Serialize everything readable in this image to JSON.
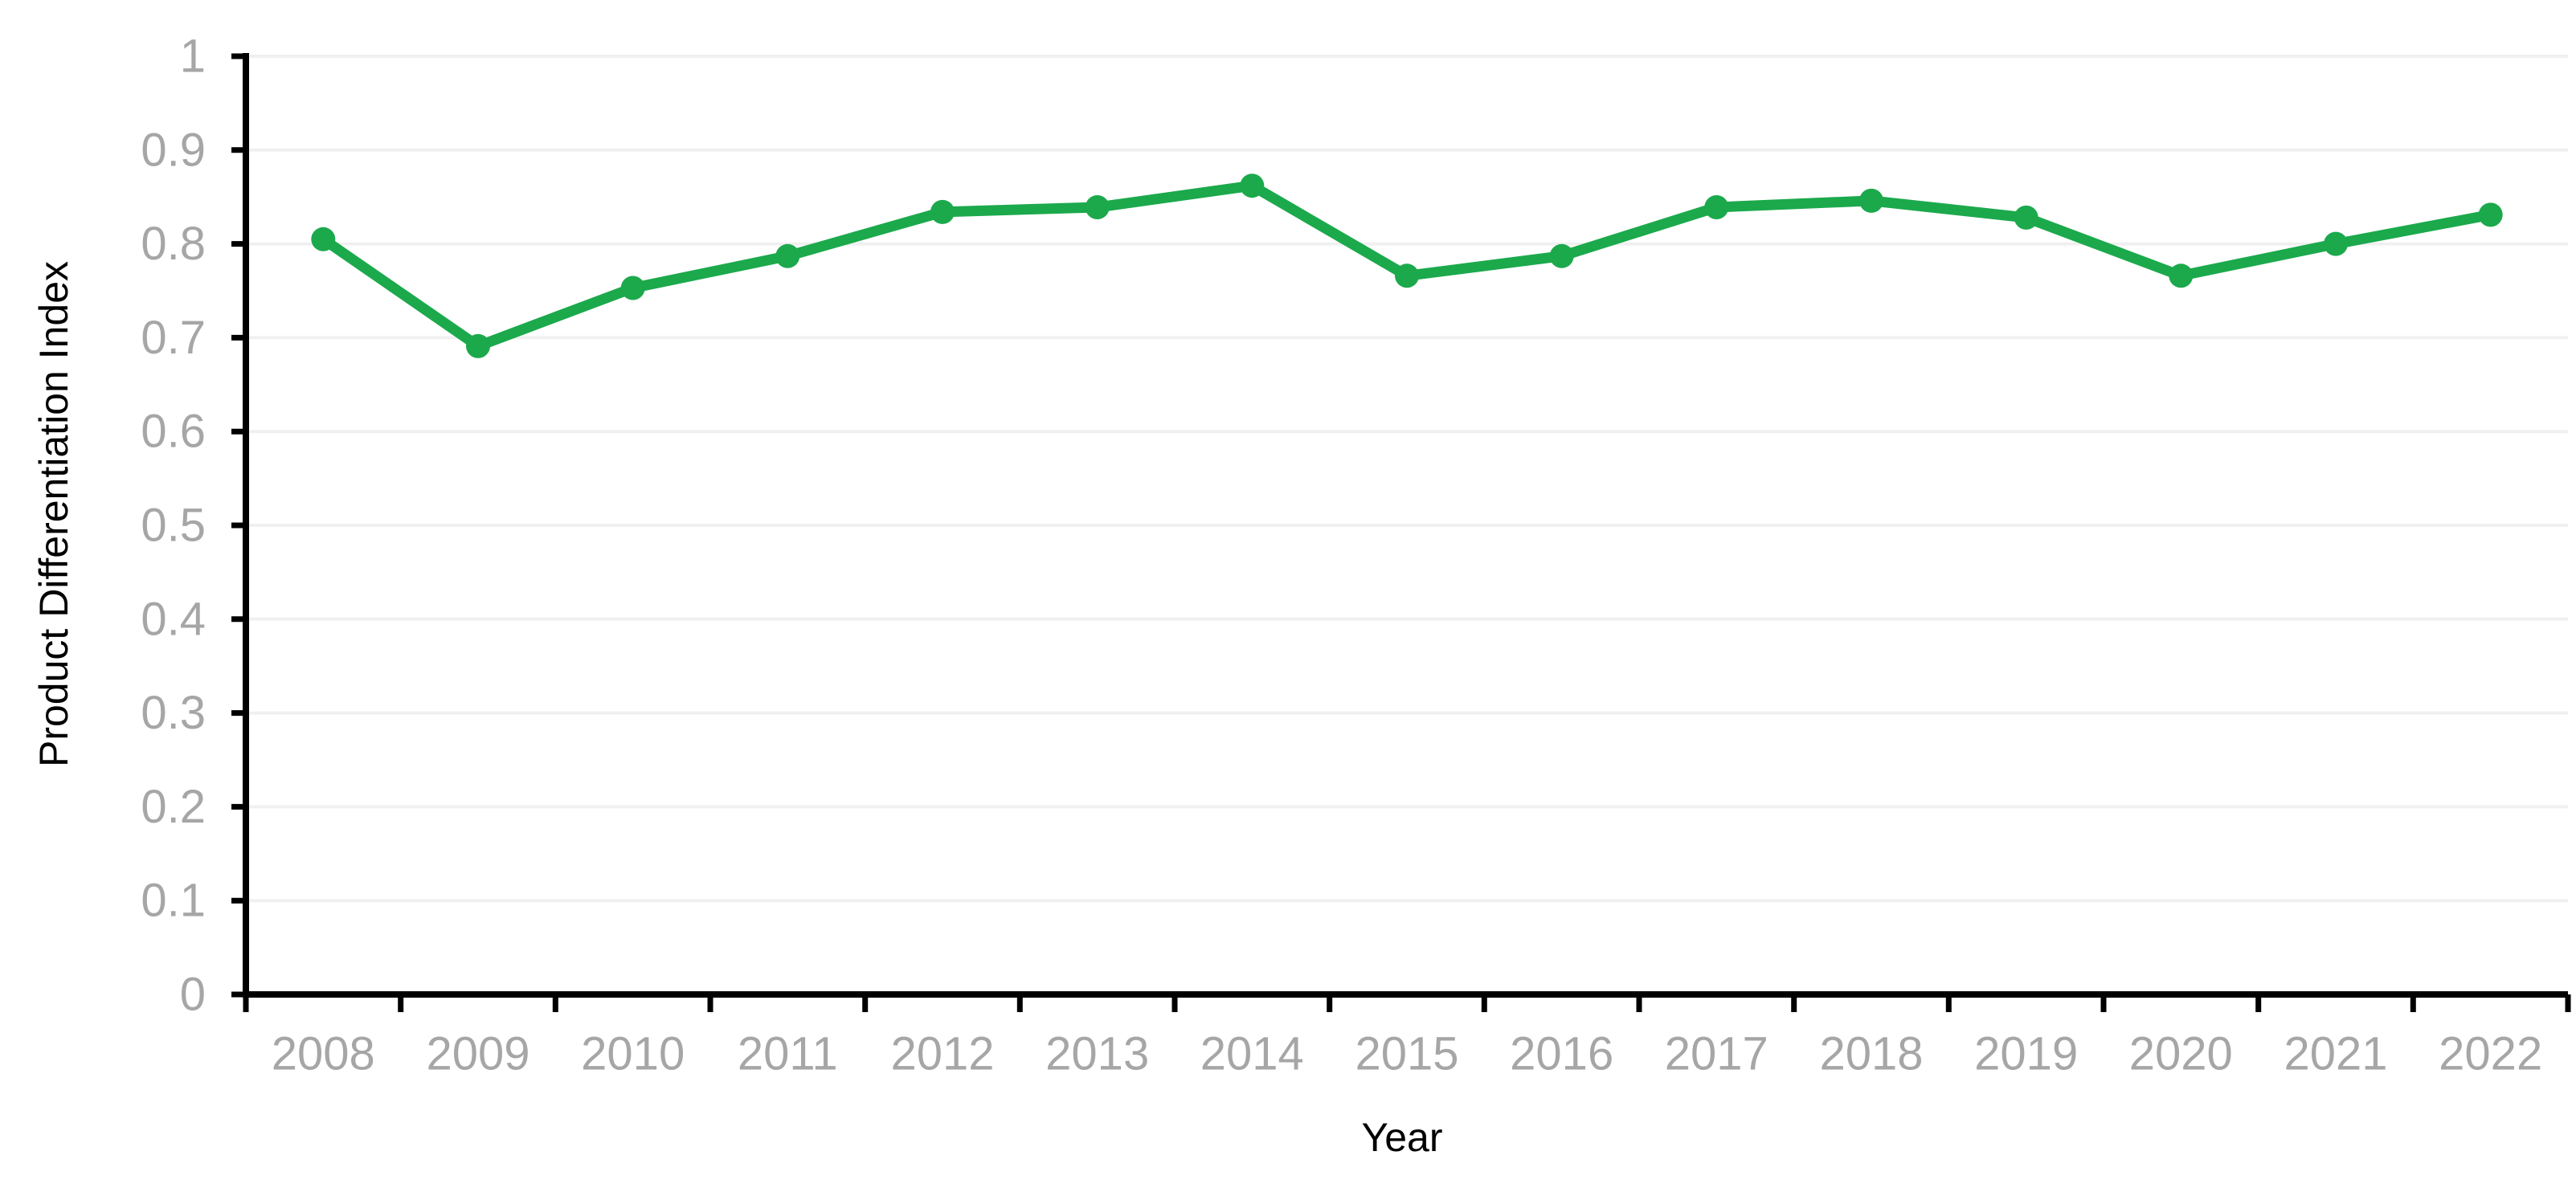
{
  "chart_data": {
    "type": "line",
    "title": "",
    "xlabel": "Year",
    "ylabel": "Product Differentiation Index",
    "x": [
      2008,
      2009,
      2010,
      2011,
      2012,
      2013,
      2014,
      2015,
      2016,
      2017,
      2018,
      2019,
      2020,
      2021,
      2022
    ],
    "x_tick_labels": [
      "2008",
      "2009",
      "2010",
      "2011",
      "2012",
      "2013",
      "2014",
      "2015",
      "2016",
      "2017",
      "2018",
      "2019",
      "2020",
      "2021",
      "2022"
    ],
    "series": [
      {
        "name": "Product Differentiation Index",
        "marker": "circle",
        "color": "#1ba94c",
        "values": [
          0.805,
          0.691,
          0.753,
          0.787,
          0.834,
          0.839,
          0.862,
          0.766,
          0.787,
          0.839,
          0.846,
          0.828,
          0.766,
          0.8,
          0.831
        ]
      }
    ],
    "ylim": [
      0,
      1
    ],
    "yticks": [
      0,
      0.1,
      0.2,
      0.3,
      0.4,
      0.5,
      0.6,
      0.7,
      0.8,
      0.9,
      1
    ],
    "ytick_labels": [
      "0",
      "0.1",
      "0.2",
      "0.3",
      "0.4",
      "0.5",
      "0.6",
      "0.7",
      "0.8",
      "0.9",
      "1"
    ],
    "grid": "horizontal",
    "legend": "none",
    "styles": {
      "axis_color": "#000000",
      "tick_label_color": "#a6a6a6",
      "gridline_color": "#f0f0f0",
      "background": "#ffffff"
    }
  }
}
